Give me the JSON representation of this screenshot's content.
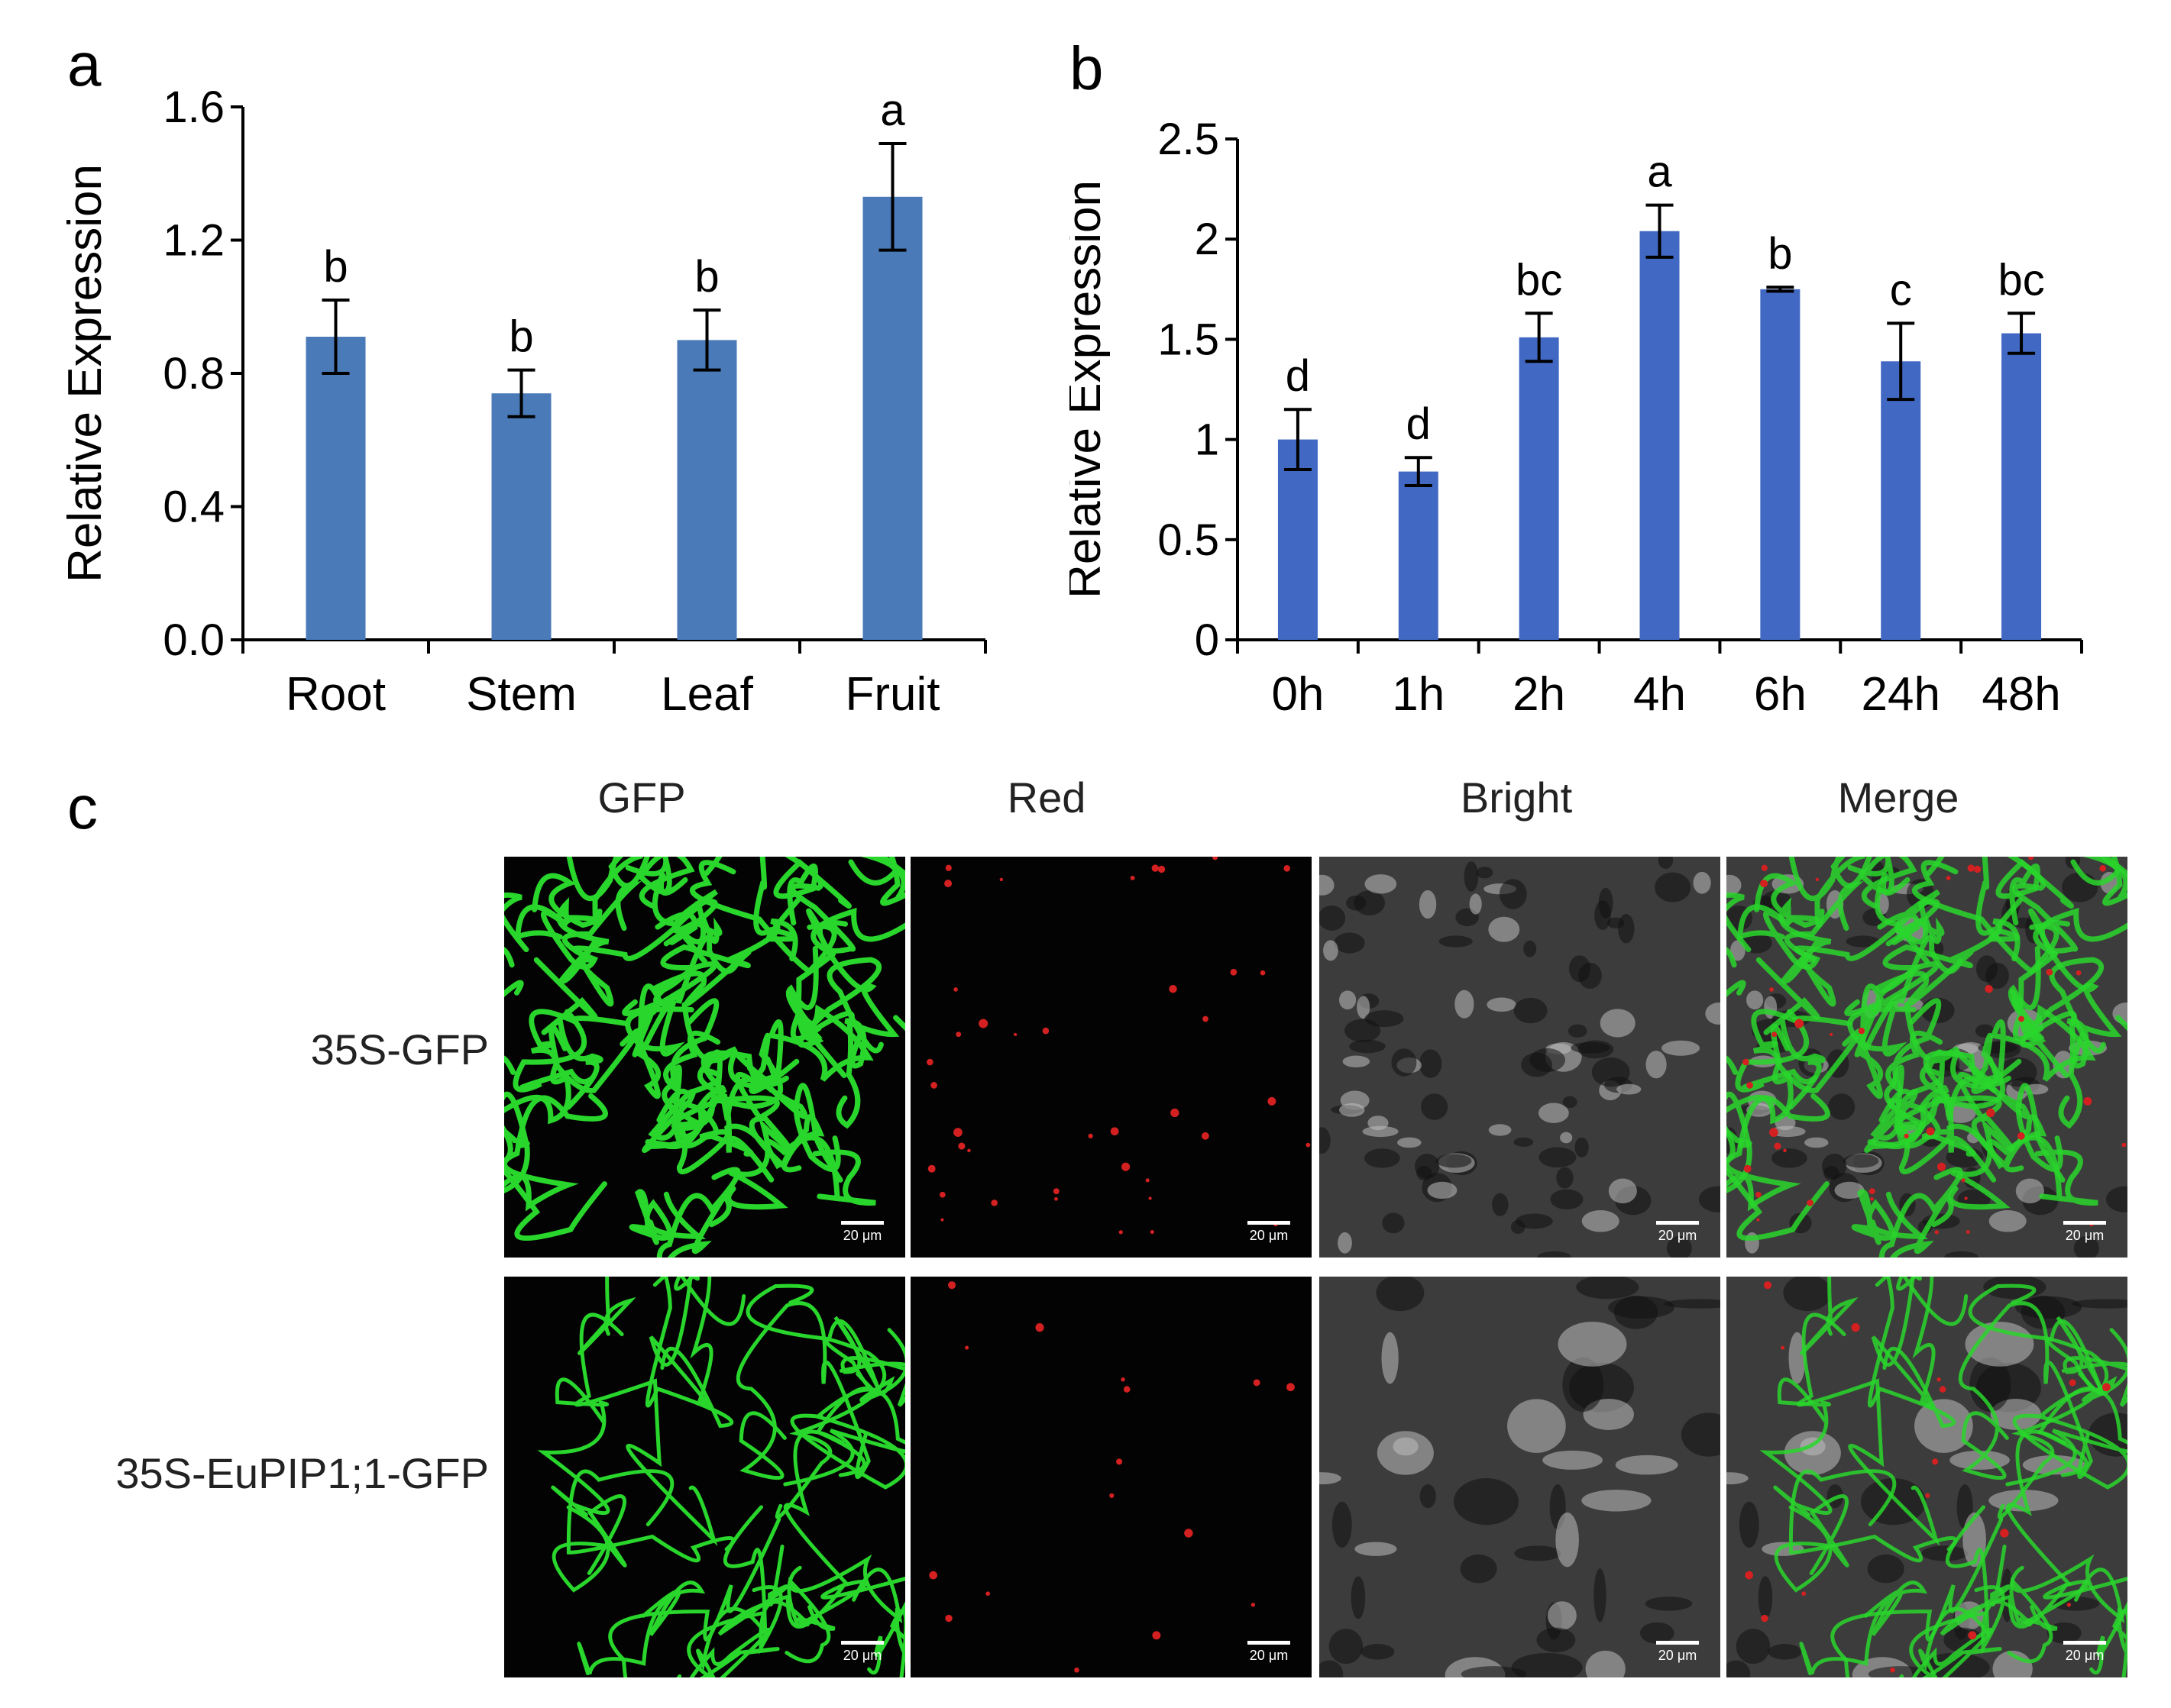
{
  "panel_letters": {
    "a": "a",
    "b": "b",
    "c": "c"
  },
  "chart_data": [
    {
      "type": "bar",
      "panel": "a",
      "categories": [
        "Root",
        "Stem",
        "Leaf",
        "Fruit"
      ],
      "values": [
        0.91,
        0.74,
        0.9,
        1.33
      ],
      "errors": [
        0.11,
        0.07,
        0.09,
        0.16
      ],
      "significance": [
        "b",
        "b",
        "b",
        "a"
      ],
      "ylabel": "Relative Expression",
      "yticks": [
        "0.0",
        "0.4",
        "0.8",
        "1.2",
        "1.6"
      ],
      "ylim": [
        0,
        1.6
      ],
      "bar_color": "#4a7ab8"
    },
    {
      "type": "bar",
      "panel": "b",
      "categories": [
        "0h",
        "1h",
        "2h",
        "4h",
        "6h",
        "24h",
        "48h"
      ],
      "values": [
        1.0,
        0.84,
        1.51,
        2.04,
        1.75,
        1.39,
        1.53
      ],
      "errors": [
        0.15,
        0.07,
        0.12,
        0.13,
        0.01,
        0.19,
        0.1
      ],
      "significance": [
        "d",
        "d",
        "bc",
        "a",
        "b",
        "c",
        "bc"
      ],
      "ylabel": "Relative Expression",
      "yticks": [
        "0",
        "0.5",
        "1",
        "1.5",
        "2",
        "2.5"
      ],
      "ylim": [
        0,
        2.5
      ],
      "bar_color": "#4169c4"
    }
  ],
  "microscopy": {
    "columns": [
      "GFP",
      "Red",
      "Bright",
      "Merge"
    ],
    "rows": [
      "35S-GFP",
      "35S-EuPIP1;1-GFP"
    ],
    "scale_bar": "20 μm",
    "colors": {
      "gfp": "#29d62c",
      "red": "#d42020",
      "bright": "#bdbdbd"
    }
  }
}
